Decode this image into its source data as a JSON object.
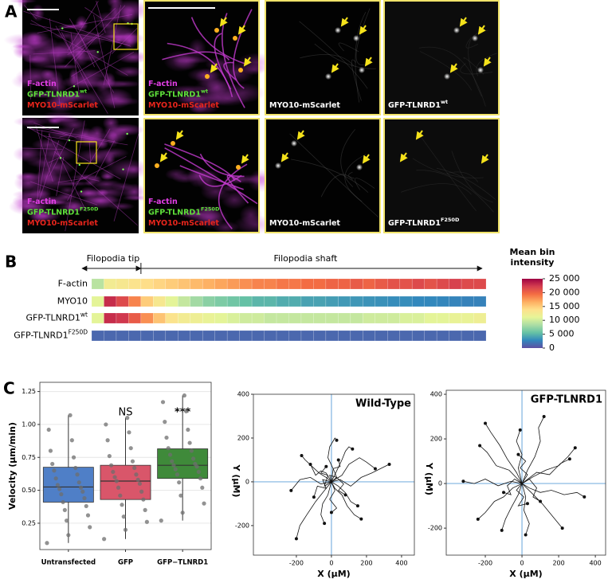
{
  "panel_a": {
    "label": "A",
    "rows": [
      {
        "images": [
          {
            "lines": [
              {
                "text": "F-actin",
                "color": "#e23ee6"
              },
              {
                "text": "GFP-TLNRD1",
                "sup": "wt",
                "color": "#5ee03a"
              },
              {
                "text": "MYO10-mScarlet",
                "color": "#e8251c"
              }
            ]
          },
          {
            "lines": [
              {
                "text": "F-actin",
                "color": "#e23ee6"
              },
              {
                "text": "GFP-TLNRD1",
                "sup": "wt",
                "color": "#5ee03a"
              },
              {
                "text": "MYO10-mScarlet",
                "color": "#e8251c"
              }
            ]
          },
          {
            "lines": [
              {
                "text": "MYO10-mScarlet",
                "color": "#ffffff"
              }
            ]
          },
          {
            "lines": [
              {
                "text": "GFP-TLNRD1",
                "sup": "wt",
                "color": "#ffffff"
              }
            ]
          }
        ]
      },
      {
        "images": [
          {
            "lines": [
              {
                "text": "F-actin",
                "color": "#e23ee6"
              },
              {
                "text": "GFP-TLNRD1",
                "sup": "F250D",
                "color": "#5ee03a"
              },
              {
                "text": "MYO10-mScarlet",
                "color": "#e8251c"
              }
            ]
          },
          {
            "lines": [
              {
                "text": "F-actin",
                "color": "#e23ee6"
              },
              {
                "text": "GFP-TLNRD1",
                "sup": "F250D",
                "color": "#5ee03a"
              },
              {
                "text": "MYO10-mScarlet",
                "color": "#e8251c"
              }
            ]
          },
          {
            "lines": [
              {
                "text": "MYO10-mScarlet",
                "color": "#ffffff"
              }
            ]
          },
          {
            "lines": [
              {
                "text": "GFP-TLNRD1",
                "sup": "F250D",
                "color": "#ffffff"
              }
            ]
          }
        ]
      }
    ]
  },
  "chart_data": [
    {
      "type": "heatmap",
      "panel_label": "B",
      "tip_label": "Filopodia tip",
      "shaft_label": "Filopodia shaft",
      "colorbar_title": [
        "Mean bin",
        "intensity"
      ],
      "clim": [
        0,
        25000
      ],
      "colormap": [
        "#5e4fa2",
        "#3288bd",
        "#66c2a5",
        "#abdda4",
        "#e6f598",
        "#fee08b",
        "#fdae61",
        "#f46d43",
        "#d53e4f",
        "#9e0142"
      ],
      "colorbar_ticks": [
        {
          "value": 25000,
          "label": "25 000"
        },
        {
          "value": 20000,
          "label": "20 000"
        },
        {
          "value": 15000,
          "label": "15 000"
        },
        {
          "value": 10000,
          "label": "10 000"
        },
        {
          "value": 5000,
          "label": "5 000"
        },
        0
      ],
      "rows": [
        {
          "name": "F-actin",
          "values": [
            9000,
            12500,
            13000,
            13500,
            14000,
            14500,
            15000,
            15500,
            16000,
            16500,
            17000,
            17500,
            18000,
            18500,
            18500,
            19000,
            19000,
            19500,
            19500,
            20000,
            20000,
            20500,
            20000,
            20500,
            21000,
            21000,
            21500,
            21000,
            21500,
            22000,
            21500,
            21500
          ]
        },
        {
          "name": "MYO10",
          "values": [
            11000,
            23000,
            21500,
            18500,
            15000,
            13000,
            11000,
            9500,
            8000,
            7000,
            6500,
            6000,
            5500,
            5000,
            5000,
            4500,
            4500,
            4000,
            4000,
            3800,
            3600,
            3500,
            3300,
            3200,
            3000,
            3000,
            2800,
            2800,
            2700,
            2600,
            2500,
            2500
          ]
        },
        {
          "name": "GFP-TLNRD1",
          "sup": "wt",
          "values": [
            11000,
            23000,
            22500,
            20500,
            18000,
            15500,
            13500,
            12500,
            12000,
            11500,
            11000,
            10500,
            10000,
            10000,
            9500,
            9500,
            9500,
            9500,
            9500,
            9500,
            9500,
            9500,
            10000,
            10000,
            10000,
            10500,
            10500,
            11000,
            11000,
            11500,
            11500,
            12000
          ]
        },
        {
          "name": "GFP-TLNRD1",
          "sup": "F250D",
          "values": [
            1200,
            1200,
            1200,
            1200,
            1200,
            1200,
            1200,
            1200,
            1200,
            1200,
            1200,
            1200,
            1200,
            1200,
            1200,
            1200,
            1200,
            1200,
            1200,
            1200,
            1200,
            1200,
            1200,
            1200,
            1200,
            1200,
            1200,
            1200,
            1200,
            1200,
            1200,
            1200
          ]
        }
      ]
    },
    {
      "type": "box",
      "panel_label": "C",
      "y_label": "Velocity (μm/min)",
      "categories": [
        "Untransfected",
        "GFP",
        "GFP−TLNRD1"
      ],
      "annotations": [
        null,
        "NS",
        "***"
      ],
      "colors": [
        "#4f7fc7",
        "#d9566a",
        "#3f8a3a"
      ],
      "point_color": "#6e6e6e",
      "ylim": [
        0.05,
        1.32
      ],
      "yticks": [
        0.25,
        {
          "value": 0.5,
          "label": "0.50"
        },
        0.75,
        {
          "value": 1.0,
          "label": "1.00"
        },
        1.25
      ],
      "grid": true,
      "boxes": [
        {
          "whisker_low": 0.1,
          "q1": 0.41,
          "median": 0.525,
          "q3": 0.675,
          "whisker_high": 1.07
        },
        {
          "whisker_low": 0.13,
          "q1": 0.43,
          "median": 0.57,
          "q3": 0.69,
          "whisker_high": 1.05
        },
        {
          "whisker_low": 0.27,
          "q1": 0.59,
          "median": 0.69,
          "q3": 0.815,
          "whisker_high": 1.22
        }
      ],
      "points": [
        [
          0.1,
          0.16,
          0.22,
          0.27,
          0.31,
          0.35,
          0.38,
          0.41,
          0.44,
          0.47,
          0.49,
          0.51,
          0.52,
          0.54,
          0.56,
          0.59,
          0.62,
          0.65,
          0.67,
          0.7,
          0.75,
          0.8,
          0.88,
          0.96,
          1.07
        ],
        [
          0.13,
          0.2,
          0.26,
          0.3,
          0.35,
          0.39,
          0.43,
          0.46,
          0.49,
          0.52,
          0.55,
          0.57,
          0.58,
          0.6,
          0.62,
          0.64,
          0.67,
          0.69,
          0.72,
          0.76,
          0.82,
          0.88,
          0.94,
          1.0,
          1.05
        ],
        [
          0.27,
          0.33,
          0.4,
          0.46,
          0.52,
          0.56,
          0.59,
          0.62,
          0.64,
          0.66,
          0.68,
          0.69,
          0.7,
          0.72,
          0.74,
          0.77,
          0.8,
          0.82,
          0.86,
          0.9,
          0.96,
          1.02,
          1.1,
          1.17,
          1.22
        ]
      ]
    },
    {
      "type": "trajectory",
      "title": "Wild-Type",
      "x_label": "X (μM)",
      "y_label": "Y (μM)",
      "color": "#111111",
      "axis_color": "#7fb3e0",
      "xlim": [
        -445,
        473
      ],
      "ylim": [
        -335,
        400
      ],
      "xticks": [
        -200,
        0,
        200,
        400
      ],
      "yticks": [
        -200,
        0,
        200,
        400
      ],
      "tracks": [
        {
          "x": [
            0,
            -30,
            -70,
            -110,
            -150,
            -170
          ],
          "y": [
            0,
            20,
            40,
            70,
            100,
            120
          ]
        },
        {
          "x": [
            0,
            20,
            60,
            90,
            130,
            170
          ],
          "y": [
            0,
            -30,
            -60,
            -110,
            -150,
            -170
          ]
        },
        {
          "x": [
            0,
            -40,
            -90,
            -140,
            -180,
            -200
          ],
          "y": [
            0,
            -40,
            -90,
            -150,
            -200,
            -260
          ]
        },
        {
          "x": [
            0,
            50,
            110,
            170,
            230,
            280,
            330
          ],
          "y": [
            0,
            10,
            -20,
            20,
            40,
            60,
            80
          ]
        },
        {
          "x": [
            0,
            30,
            60,
            80,
            100,
            120
          ],
          "y": [
            0,
            50,
            100,
            140,
            160,
            150
          ]
        },
        {
          "x": [
            0,
            -60,
            -120,
            -180,
            -230
          ],
          "y": [
            0,
            -10,
            20,
            10,
            -40
          ]
        },
        {
          "x": [
            0,
            10,
            -20,
            -10,
            20,
            30
          ],
          "y": [
            0,
            60,
            110,
            160,
            200,
            190
          ]
        },
        {
          "x": [
            0,
            40,
            80,
            110,
            150
          ],
          "y": [
            0,
            -20,
            -50,
            -90,
            -110
          ]
        },
        {
          "x": [
            0,
            -20,
            -50,
            -60,
            -40
          ],
          "y": [
            0,
            -60,
            -100,
            -150,
            -190
          ]
        },
        {
          "x": [
            0,
            60,
            100,
            160,
            200,
            250
          ],
          "y": [
            0,
            30,
            80,
            110,
            90,
            60
          ]
        },
        {
          "x": [
            0,
            -30,
            -60,
            -90,
            -120
          ],
          "y": [
            0,
            40,
            50,
            30,
            80
          ]
        },
        {
          "x": [
            0,
            20,
            -10,
            30,
            0
          ],
          "y": [
            0,
            -40,
            -80,
            -120,
            -140
          ]
        },
        {
          "x": [
            0,
            -50,
            -30,
            -80,
            -100
          ],
          "y": [
            0,
            10,
            -30,
            -20,
            -70
          ]
        },
        {
          "x": [
            0,
            30,
            70,
            40,
            80
          ],
          "y": [
            0,
            20,
            -10,
            -40,
            -60
          ]
        },
        {
          "x": [
            0,
            -10,
            30,
            10,
            50,
            40
          ],
          "y": [
            0,
            30,
            20,
            60,
            70,
            100
          ]
        },
        {
          "x": [
            0,
            -40,
            -20,
            -60,
            -30
          ],
          "y": [
            0,
            -20,
            30,
            40,
            70
          ]
        }
      ]
    },
    {
      "type": "trajectory",
      "title": "GFP-TLNRD1",
      "x_label": "X (μM)",
      "y_label": "Y (μM)",
      "color": "#111111",
      "axis_color": "#7fb3e0",
      "xlim": [
        -413,
        456
      ],
      "ylim": [
        -321,
        418
      ],
      "xticks": [
        -200,
        0,
        200,
        400
      ],
      "yticks": [
        -200,
        0,
        200,
        400
      ],
      "tracks": [
        {
          "x": [
            0,
            -60,
            -130,
            -200,
            -260,
            -320
          ],
          "y": [
            0,
            10,
            -10,
            20,
            0,
            10
          ]
        },
        {
          "x": [
            0,
            40,
            100,
            160,
            230,
            300,
            340
          ],
          "y": [
            0,
            -20,
            -40,
            -30,
            -50,
            -40,
            -60
          ]
        },
        {
          "x": [
            0,
            -30,
            -80,
            -120,
            -170,
            -200
          ],
          "y": [
            0,
            50,
            110,
            170,
            230,
            270
          ]
        },
        {
          "x": [
            0,
            30,
            70,
            100,
            90,
            120
          ],
          "y": [
            0,
            60,
            120,
            190,
            250,
            300
          ]
        },
        {
          "x": [
            0,
            -20,
            -60,
            -90,
            -110
          ],
          "y": [
            0,
            -50,
            -110,
            -160,
            -210
          ]
        },
        {
          "x": [
            0,
            50,
            110,
            170,
            220
          ],
          "y": [
            0,
            -40,
            -90,
            -150,
            -200
          ]
        },
        {
          "x": [
            0,
            60,
            130,
            200,
            250,
            290
          ],
          "y": [
            0,
            30,
            60,
            80,
            120,
            160
          ]
        },
        {
          "x": [
            0,
            -50,
            -100,
            -150,
            -200,
            -240
          ],
          "y": [
            0,
            -20,
            -60,
            -80,
            -130,
            -160
          ]
        },
        {
          "x": [
            0,
            20,
            10,
            40,
            20
          ],
          "y": [
            0,
            -60,
            -120,
            -180,
            -230
          ]
        },
        {
          "x": [
            0,
            -20,
            0,
            -30,
            -10
          ],
          "y": [
            0,
            70,
            130,
            190,
            240
          ]
        },
        {
          "x": [
            0,
            40,
            80,
            60,
            100
          ],
          "y": [
            0,
            20,
            -20,
            -60,
            -80
          ]
        },
        {
          "x": [
            0,
            -40,
            -80,
            -60,
            -100
          ],
          "y": [
            0,
            20,
            -10,
            -50,
            -40
          ]
        },
        {
          "x": [
            0,
            30,
            -10,
            20,
            -20
          ],
          "y": [
            0,
            40,
            70,
            100,
            130
          ]
        },
        {
          "x": [
            0,
            -30,
            10,
            -20,
            30
          ],
          "y": [
            0,
            -30,
            -60,
            -100,
            -90
          ]
        },
        {
          "x": [
            0,
            80,
            150,
            210,
            260
          ],
          "y": [
            0,
            50,
            40,
            90,
            110
          ]
        },
        {
          "x": [
            0,
            -70,
            -140,
            -190,
            -230
          ],
          "y": [
            0,
            60,
            80,
            140,
            170
          ]
        }
      ]
    }
  ]
}
